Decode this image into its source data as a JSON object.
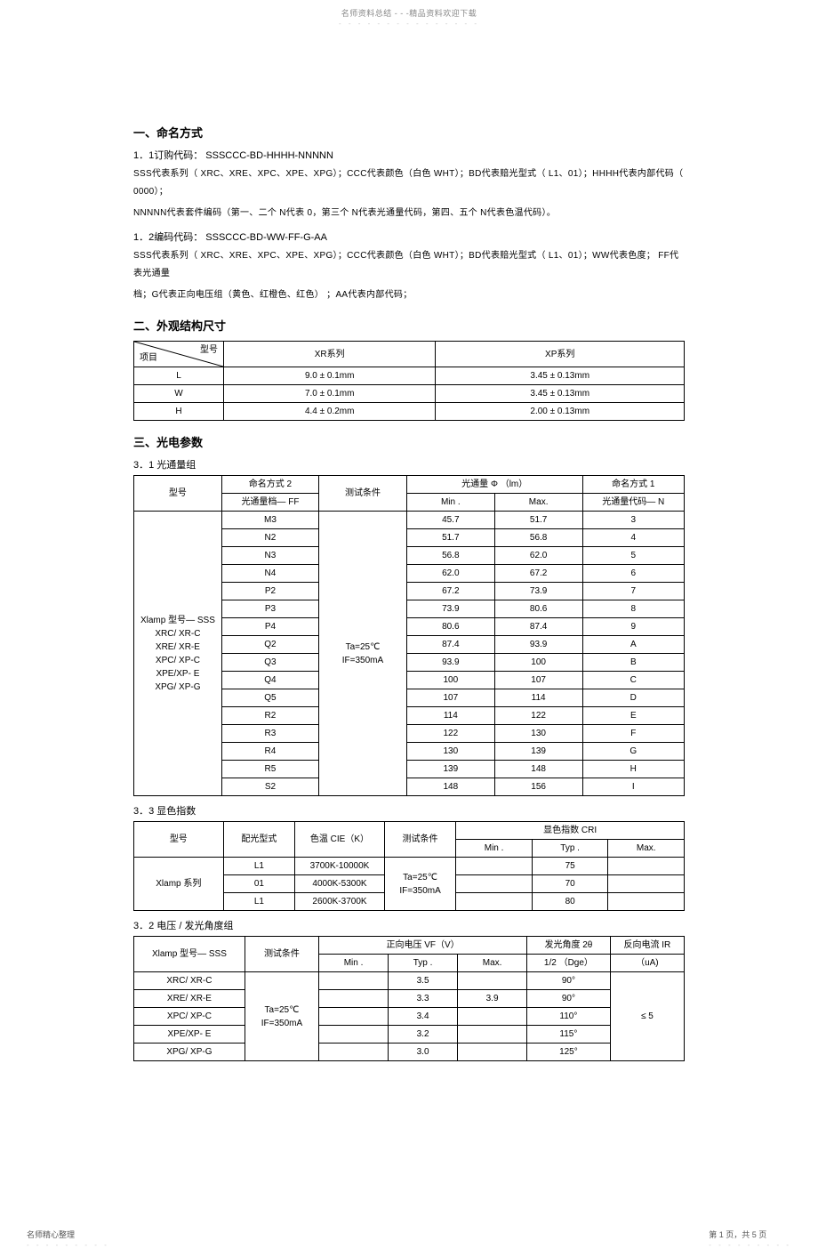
{
  "header": {
    "top": "名师资料总结 - - -精品资料欢迎下载",
    "dots": "- - - - - - - - - - - - - - -"
  },
  "s1": {
    "title": "一、命名方式",
    "sub1": "1．1订购代码： SSSCCC-BD-HHHH-NNNNN",
    "p1a": "SSS代表系列（ XRC、XRE、XPC、XPE、XPG）；CCC代表颜色（白色 WHT）；BD代表赔光型式（ L1、01）；HHHH代表内部代码（ 0000）；",
    "p1b": "NNNNN代表套件编码（第一、二个 N代表 0，第三个 N代表光通量代码，第四、五个 N代表色温代码）。",
    "sub2": "1．2编码代码： SSSCCC-BD-WW-FF-G-AA",
    "p2a": "SSS代表系列（ XRC、XRE、XPC、XPE、XPG）；CCC代表颜色（白色 WHT）；BD代表赔光型式（ L1、01）；WW代表色度； FF代表光通量",
    "p2b": "档；G代表正向电压组（黄色、红橙色、红色） ；AA代表内部代码；"
  },
  "s2": {
    "title": "二、外观结构尺寸",
    "diag_item": "项目",
    "diag_model": "型号",
    "cols": [
      "XR系列",
      "XP系列"
    ],
    "rows": [
      {
        "k": "L",
        "a": "9.0 ± 0.1mm",
        "b": "3.45 ± 0.13mm"
      },
      {
        "k": "W",
        "a": "7.0 ± 0.1mm",
        "b": "3.45 ± 0.13mm"
      },
      {
        "k": "H",
        "a": "4.4 ± 0.2mm",
        "b": "2.00 ± 0.13mm"
      }
    ]
  },
  "s3": {
    "title": "三、光电参数",
    "t31": {
      "sub": "3．1 光通量组",
      "hdr": {
        "model": "型号",
        "name2": "命名方式 2",
        "ff": "光通量档— FF",
        "cond": "测试条件",
        "flux": "光通量 Φ （lm）",
        "min": "Min .",
        "max": "Max.",
        "name1": "命名方式 1",
        "ncode": "光通量代码— N"
      },
      "model_lines": [
        "Xlamp 型号— SSS",
        "XRC/ XR-C",
        "XRE/ XR-E",
        "XPC/ XP-C",
        "XPE/XP- E",
        "XPG/ XP-G"
      ],
      "cond_lines": [
        "Ta=25℃",
        "IF=350mA"
      ],
      "rows": [
        {
          "ff": "M3",
          "min": "45.7",
          "max": "51.7",
          "n": "3"
        },
        {
          "ff": "N2",
          "min": "51.7",
          "max": "56.8",
          "n": "4"
        },
        {
          "ff": "N3",
          "min": "56.8",
          "max": "62.0",
          "n": "5"
        },
        {
          "ff": "N4",
          "min": "62.0",
          "max": "67.2",
          "n": "6"
        },
        {
          "ff": "P2",
          "min": "67.2",
          "max": "73.9",
          "n": "7"
        },
        {
          "ff": "P3",
          "min": "73.9",
          "max": "80.6",
          "n": "8"
        },
        {
          "ff": "P4",
          "min": "80.6",
          "max": "87.4",
          "n": "9"
        },
        {
          "ff": "Q2",
          "min": "87.4",
          "max": "93.9",
          "n": "A"
        },
        {
          "ff": "Q3",
          "min": "93.9",
          "max": "100",
          "n": "B"
        },
        {
          "ff": "Q4",
          "min": "100",
          "max": "107",
          "n": "C"
        },
        {
          "ff": "Q5",
          "min": "107",
          "max": "114",
          "n": "D"
        },
        {
          "ff": "R2",
          "min": "114",
          "max": "122",
          "n": "E"
        },
        {
          "ff": "R3",
          "min": "122",
          "max": "130",
          "n": "F"
        },
        {
          "ff": "R4",
          "min": "130",
          "max": "139",
          "n": "G"
        },
        {
          "ff": "R5",
          "min": "139",
          "max": "148",
          "n": "H"
        },
        {
          "ff": "S2",
          "min": "148",
          "max": "156",
          "n": "I"
        }
      ]
    },
    "t33": {
      "sub": "3．3 显色指数",
      "hdr": {
        "model": "型号",
        "light": "配光型式",
        "cie": "色温 CIE（K）",
        "cond": "测试条件",
        "cri": "显色指数 CRI",
        "min": "Min .",
        "typ": "Typ .",
        "max": "Max."
      },
      "model": "Xlamp 系列",
      "cond_lines": [
        "Ta=25℃",
        "IF=350mA"
      ],
      "rows": [
        {
          "light": "L1",
          "cie": "3700K-10000K",
          "min": "",
          "typ": "75",
          "max": ""
        },
        {
          "light": "01",
          "cie": "4000K-5300K",
          "min": "",
          "typ": "70",
          "max": ""
        },
        {
          "light": "L1",
          "cie": "2600K-3700K",
          "min": "",
          "typ": "80",
          "max": ""
        }
      ]
    },
    "t32": {
      "sub": "3．2 电压 / 发光角度组",
      "hdr": {
        "model": "Xlamp 型号— SSS",
        "cond": "测试条件",
        "vf": "正向电压 VF（V）",
        "min": "Min .",
        "typ": "Typ .",
        "max": "Max.",
        "angle": "发光角度 2θ",
        "angle2": "1/2 （Dge）",
        "ir": "反向电流 IR",
        "ir2": "（uA)"
      },
      "cond_lines": [
        "Ta=25℃",
        "IF=350mA"
      ],
      "ir_val": "≤ 5",
      "rows": [
        {
          "model": "XRC/ XR-C",
          "min": "",
          "typ": "3.5",
          "max": "",
          "angle": "90°"
        },
        {
          "model": "XRE/ XR-E",
          "min": "",
          "typ": "3.3",
          "max": "3.9",
          "angle": "90°"
        },
        {
          "model": "XPC/ XP-C",
          "min": "",
          "typ": "3.4",
          "max": "",
          "angle": "110°"
        },
        {
          "model": "XPE/XP- E",
          "min": "",
          "typ": "3.2",
          "max": "",
          "angle": "115°"
        },
        {
          "model": "XPG/ XP-G",
          "min": "",
          "typ": "3.0",
          "max": "",
          "angle": "125°"
        }
      ]
    }
  },
  "footer": {
    "left": "名师精心整理",
    "right": "第 1 页，共 5 页",
    "dots": "- - - - - - - - -"
  }
}
